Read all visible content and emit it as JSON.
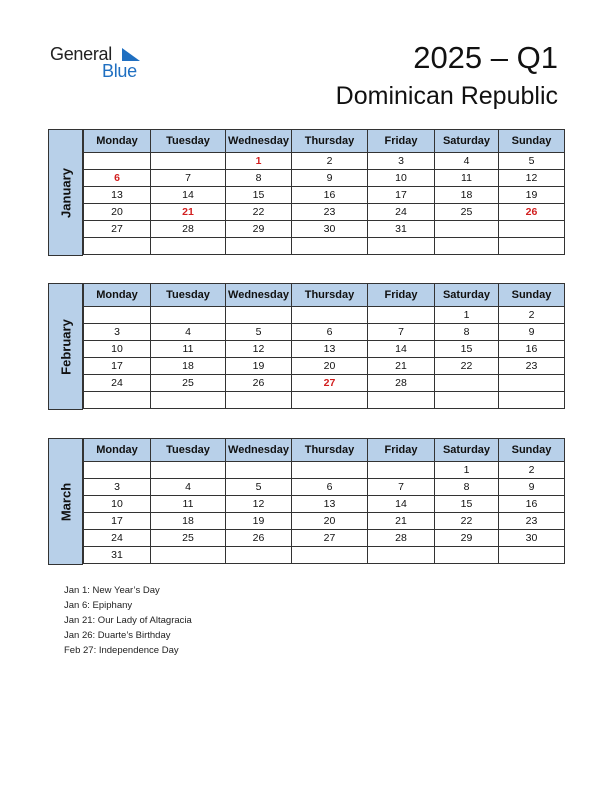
{
  "logo": {
    "word1": "General",
    "word2": "Blue",
    "accent": "#1f6fc1"
  },
  "title": "2025 – Q1",
  "country": "Dominican Republic",
  "weekdays": [
    "Monday",
    "Tuesday",
    "Wednesday",
    "Thursday",
    "Friday",
    "Saturday",
    "Sunday"
  ],
  "months": [
    {
      "name": "January",
      "weeks": [
        [
          "",
          "",
          "1",
          "2",
          "3",
          "4",
          "5"
        ],
        [
          "6",
          "7",
          "8",
          "9",
          "10",
          "11",
          "12"
        ],
        [
          "13",
          "14",
          "15",
          "16",
          "17",
          "18",
          "19"
        ],
        [
          "20",
          "21",
          "22",
          "23",
          "24",
          "25",
          "26"
        ],
        [
          "27",
          "28",
          "29",
          "30",
          "31",
          "",
          ""
        ],
        [
          "",
          "",
          "",
          "",
          "",
          "",
          ""
        ]
      ],
      "holidays": [
        "1",
        "6",
        "21",
        "26"
      ]
    },
    {
      "name": "February",
      "weeks": [
        [
          "",
          "",
          "",
          "",
          "",
          "1",
          "2"
        ],
        [
          "3",
          "4",
          "5",
          "6",
          "7",
          "8",
          "9"
        ],
        [
          "10",
          "11",
          "12",
          "13",
          "14",
          "15",
          "16"
        ],
        [
          "17",
          "18",
          "19",
          "20",
          "21",
          "22",
          "23"
        ],
        [
          "24",
          "25",
          "26",
          "27",
          "28",
          "",
          ""
        ],
        [
          "",
          "",
          "",
          "",
          "",
          "",
          ""
        ]
      ],
      "holidays": [
        "27"
      ]
    },
    {
      "name": "March",
      "weeks": [
        [
          "",
          "",
          "",
          "",
          "",
          "1",
          "2"
        ],
        [
          "3",
          "4",
          "5",
          "6",
          "7",
          "8",
          "9"
        ],
        [
          "10",
          "11",
          "12",
          "13",
          "14",
          "15",
          "16"
        ],
        [
          "17",
          "18",
          "19",
          "20",
          "21",
          "22",
          "23"
        ],
        [
          "24",
          "25",
          "26",
          "27",
          "28",
          "29",
          "30"
        ],
        [
          "31",
          "",
          "",
          "",
          "",
          "",
          ""
        ]
      ],
      "holidays": []
    }
  ],
  "holiday_list": [
    "Jan 1: New Year’s Day",
    "Jan 6: Epiphany",
    "Jan 21: Our Lady of Altagracia",
    "Jan 26: Duarte’s Birthday",
    "Feb 27: Independence Day"
  ],
  "colors": {
    "header_bg": "#b8d0e9",
    "holiday": "#d21f1f"
  }
}
